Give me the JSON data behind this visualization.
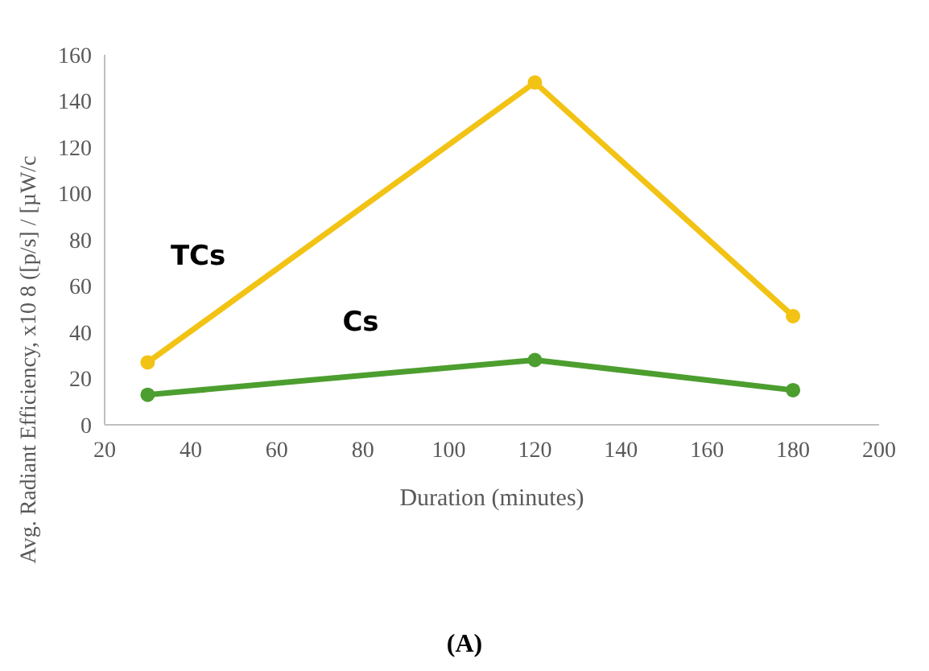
{
  "chart_data": {
    "type": "line",
    "title": "(A)",
    "xlabel": "Duration (minutes)",
    "ylabel": "Avg. Radiant Efficiency, x10 8 ([p/s] / [µW/c",
    "x": [
      30,
      120,
      180
    ],
    "series": [
      {
        "name": "TCs",
        "color": "#f2c314",
        "values": [
          27,
          148,
          47
        ]
      },
      {
        "name": "Cs",
        "color": "#4c9e2f",
        "values": [
          13,
          28,
          15
        ]
      }
    ],
    "xlim": [
      20,
      200
    ],
    "xticks": [
      20,
      40,
      60,
      80,
      100,
      120,
      140,
      160,
      180,
      200
    ],
    "ylim": [
      0,
      160
    ],
    "yticks": [
      0,
      20,
      40,
      60,
      80,
      100,
      120,
      140,
      160
    ],
    "grid": false,
    "marker": "circle",
    "line_style": "solid"
  }
}
